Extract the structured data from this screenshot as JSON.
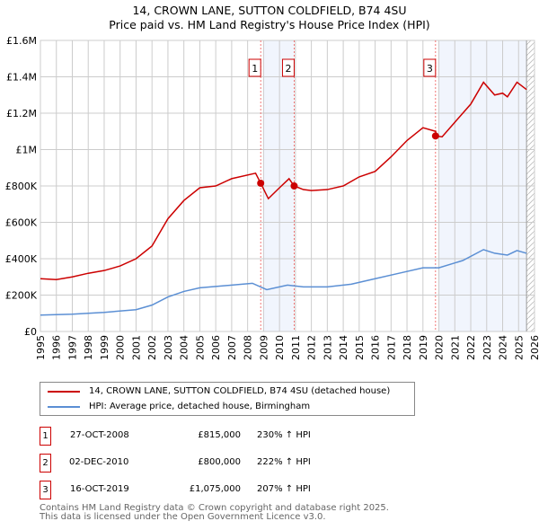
{
  "title_line1": "14, CROWN LANE, SUTTON COLDFIELD, B74 4SU",
  "title_line2": "Price paid vs. HM Land Registry's House Price Index (HPI)",
  "chart_data": {
    "type": "line",
    "ylim": [
      0,
      1600000
    ],
    "xlim": [
      1995,
      2026
    ],
    "yticks": [
      0,
      200000,
      400000,
      600000,
      800000,
      1000000,
      1200000,
      1400000,
      1600000
    ],
    "ytick_labels": [
      "£0",
      "£200K",
      "£400K",
      "£600K",
      "£800K",
      "£1M",
      "£1.2M",
      "£1.4M",
      "£1.6M"
    ],
    "xticks": [
      1995,
      1996,
      1997,
      1998,
      1999,
      2000,
      2001,
      2002,
      2003,
      2004,
      2005,
      2006,
      2007,
      2008,
      2009,
      2010,
      2011,
      2012,
      2013,
      2014,
      2015,
      2016,
      2017,
      2018,
      2019,
      2020,
      2021,
      2022,
      2023,
      2024,
      2025,
      2026
    ],
    "grid": true,
    "series": [
      {
        "name": "14, CROWN LANE, SUTTON COLDFIELD, B74 4SU (detached house)",
        "color": "#cc0000",
        "x": [
          1995,
          1996,
          1997,
          1998,
          1999,
          2000,
          2001,
          2002,
          2003,
          2004,
          2005,
          2006,
          2007,
          2008.5,
          2008.82,
          2009.3,
          2010,
          2010.6,
          2010.92,
          2011.5,
          2012,
          2013,
          2014,
          2015,
          2016,
          2017,
          2018,
          2019,
          2019.8,
          2019.82,
          2020.2,
          2021,
          2022,
          2022.8,
          2023.5,
          2024,
          2024.3,
          2024.9,
          2025.5
        ],
        "y": [
          290000,
          285000,
          300000,
          320000,
          335000,
          360000,
          400000,
          470000,
          620000,
          720000,
          790000,
          800000,
          840000,
          870000,
          815000,
          730000,
          790000,
          840000,
          800000,
          780000,
          775000,
          780000,
          800000,
          850000,
          880000,
          960000,
          1050000,
          1120000,
          1100000,
          1075000,
          1070000,
          1150000,
          1250000,
          1370000,
          1300000,
          1310000,
          1290000,
          1370000,
          1330000
        ]
      },
      {
        "name": "HPI: Average price, detached house, Birmingham",
        "color": "#5b8fd4",
        "x": [
          1995,
          1997,
          1999,
          2001,
          2002,
          2003,
          2004,
          2005,
          2007,
          2008.3,
          2009.2,
          2010.5,
          2011.5,
          2013,
          2014.5,
          2016,
          2017.5,
          2019,
          2020,
          2021.5,
          2022.8,
          2023.5,
          2024.3,
          2024.9,
          2025.5
        ],
        "y": [
          90000,
          95000,
          105000,
          120000,
          145000,
          190000,
          220000,
          240000,
          255000,
          265000,
          230000,
          255000,
          245000,
          245000,
          260000,
          290000,
          320000,
          350000,
          350000,
          390000,
          450000,
          430000,
          420000,
          445000,
          430000
        ]
      }
    ],
    "sales": [
      {
        "label": "1",
        "x": 2008.82,
        "price": 815000
      },
      {
        "label": "2",
        "x": 2010.92,
        "price": 800000
      },
      {
        "label": "3",
        "x": 2019.79,
        "price": 1075000
      }
    ]
  },
  "legend": {
    "property": "14, CROWN LANE, SUTTON COLDFIELD, B74 4SU (detached house)",
    "hpi": "HPI: Average price, detached house, Birmingham"
  },
  "sales_table": [
    {
      "n": "1",
      "date": "27-OCT-2008",
      "price": "£815,000",
      "hpi": "230% ↑ HPI"
    },
    {
      "n": "2",
      "date": "02-DEC-2010",
      "price": "£800,000",
      "hpi": "222% ↑ HPI"
    },
    {
      "n": "3",
      "date": "16-OCT-2019",
      "price": "£1,075,000",
      "hpi": "207% ↑ HPI"
    }
  ],
  "footer_line1": "Contains HM Land Registry data © Crown copyright and database right 2025.",
  "footer_line2": "This data is licensed under the Open Government Licence v3.0."
}
